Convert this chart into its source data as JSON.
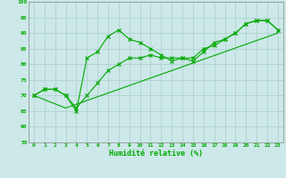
{
  "xlabel": "Humidité relative (%)",
  "xlim": [
    -0.5,
    23.5
  ],
  "ylim": [
    55,
    100
  ],
  "yticks": [
    55,
    60,
    65,
    70,
    75,
    80,
    85,
    90,
    95,
    100
  ],
  "xticks": [
    0,
    1,
    2,
    3,
    4,
    5,
    6,
    7,
    8,
    9,
    10,
    11,
    12,
    13,
    14,
    15,
    16,
    17,
    18,
    19,
    20,
    21,
    22,
    23
  ],
  "bg_color": "#cce8e8",
  "grid_color": "#aacccc",
  "line_color": "#00aa00",
  "line1_x": [
    0,
    1,
    2,
    3,
    4,
    5,
    6,
    7,
    8,
    9,
    10,
    11,
    12,
    13,
    14,
    15,
    16,
    17,
    18,
    19,
    20,
    21,
    22,
    23
  ],
  "line1_y": [
    70,
    72,
    72,
    70,
    65,
    82,
    84,
    89,
    91,
    88,
    87,
    85,
    83,
    81,
    82,
    81,
    84,
    87,
    88,
    90,
    93,
    94,
    94,
    91
  ],
  "line2_x": [
    0,
    1,
    2,
    3,
    4,
    5,
    6,
    7,
    8,
    9,
    10,
    11,
    12,
    13,
    14,
    15,
    16,
    17,
    18,
    19,
    20,
    21,
    22,
    23
  ],
  "line2_y": [
    70,
    72,
    72,
    70,
    66,
    70,
    74,
    78,
    80,
    82,
    82,
    83,
    82,
    82,
    82,
    82,
    85,
    86,
    88,
    90,
    93,
    94,
    94,
    91
  ],
  "line3_x": [
    0,
    3,
    23
  ],
  "line3_y": [
    70,
    66,
    90
  ]
}
